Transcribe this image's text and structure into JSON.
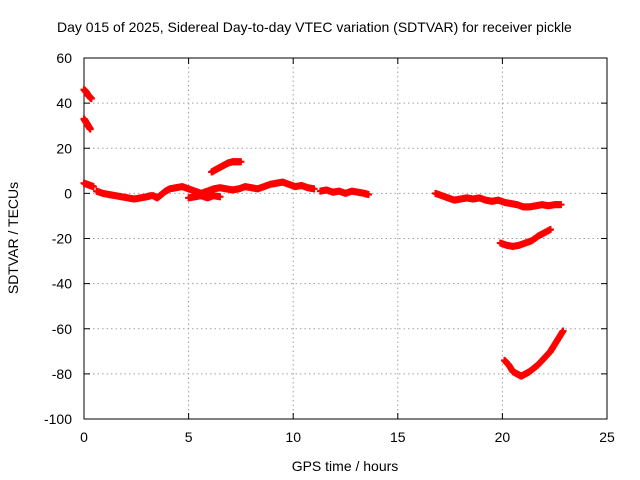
{
  "chart_data": {
    "type": "scatter",
    "title": "Day 015 of 2025, Sidereal Day-to-day VTEC variation (SDTVAR) for receiver pickle",
    "xlabel": "GPS time / hours",
    "ylabel": "SDTVAR / TECUs",
    "xlim": [
      0,
      25
    ],
    "ylim": [
      -100,
      60
    ],
    "xticks": [
      0,
      5,
      10,
      15,
      20,
      25
    ],
    "yticks": [
      -100,
      -80,
      -60,
      -40,
      -20,
      0,
      20,
      40,
      60
    ],
    "grid": true,
    "legend": "none",
    "marker": "plus",
    "color": "#ff0000",
    "segments": [
      {
        "x": [
          0.0,
          0.1,
          0.2,
          0.3,
          0.35
        ],
        "y": [
          46,
          45,
          43.5,
          42.5,
          42
        ]
      },
      {
        "x": [
          0.0,
          0.1,
          0.2,
          0.3
        ],
        "y": [
          33,
          31.5,
          30,
          28.5
        ]
      },
      {
        "x": [
          0.0,
          0.15,
          0.3,
          0.45
        ],
        "y": [
          4.5,
          4,
          3.5,
          3
        ]
      },
      {
        "x": [
          0.6,
          0.9,
          1.2,
          1.5,
          1.8,
          2.1,
          2.4,
          2.7,
          3.0,
          3.2
        ],
        "y": [
          1,
          0,
          -0.5,
          -1,
          -1.5,
          -2,
          -2.5,
          -2,
          -1.5,
          -1
        ]
      },
      {
        "x": [
          3.3,
          3.5,
          3.7,
          3.9,
          4.1,
          4.4,
          4.7,
          5.0,
          5.3,
          5.6,
          5.9,
          6.2,
          6.5,
          6.8,
          7.1,
          7.4,
          7.7,
          8.0,
          8.3,
          8.6,
          8.9,
          9.2,
          9.5,
          9.8,
          10.1,
          10.4,
          10.7,
          11.0
        ],
        "y": [
          -1,
          -2,
          -0.5,
          1,
          2,
          2.5,
          3,
          2,
          1,
          0,
          1,
          2,
          2.5,
          2,
          1.5,
          2,
          3,
          2.5,
          2,
          3,
          4,
          4.5,
          5,
          4,
          3,
          3.5,
          2.5,
          2
        ]
      },
      {
        "x": [
          5.0,
          5.3,
          5.6,
          5.9,
          6.2,
          6.5
        ],
        "y": [
          -2,
          -1.5,
          -1,
          -2,
          -1,
          -1.5
        ]
      },
      {
        "x": [
          6.1,
          6.3,
          6.5,
          6.7,
          6.9,
          7.1,
          7.3,
          7.5
        ],
        "y": [
          9.5,
          10.5,
          11.5,
          12.5,
          13.5,
          14,
          14,
          14
        ]
      },
      {
        "x": [
          11.3,
          11.6,
          11.9,
          12.2,
          12.5,
          12.8,
          13.1,
          13.4,
          13.6
        ],
        "y": [
          1,
          1.5,
          0.5,
          1,
          0,
          1,
          0.5,
          0,
          -0.5
        ]
      },
      {
        "x": [
          16.8,
          17.1,
          17.4,
          17.7,
          18.0,
          18.3,
          18.6,
          18.9,
          19.2,
          19.5,
          19.8,
          20.1,
          20.4,
          20.7,
          21.0,
          21.3,
          21.6,
          21.9,
          22.2,
          22.5,
          22.8
        ],
        "y": [
          0,
          -1,
          -2,
          -3,
          -2.5,
          -2,
          -2.5,
          -2,
          -3,
          -3.5,
          -3,
          -4,
          -4.5,
          -5,
          -6,
          -6,
          -5.5,
          -5,
          -5.5,
          -5,
          -5
        ]
      },
      {
        "x": [
          19.9,
          20.2,
          20.5,
          20.8,
          21.1,
          21.4,
          21.7,
          22.0,
          22.3
        ],
        "y": [
          -22,
          -23,
          -23.5,
          -23,
          -22,
          -21,
          -19,
          -17.5,
          -16
        ]
      },
      {
        "x": [
          20.1,
          20.3,
          20.5,
          20.7,
          20.9,
          21.1,
          21.3,
          21.5,
          21.7,
          21.9,
          22.1,
          22.3,
          22.5,
          22.7,
          22.9
        ],
        "y": [
          -74,
          -76,
          -79,
          -80,
          -81,
          -80,
          -79,
          -77.5,
          -76,
          -74,
          -72,
          -70,
          -67,
          -64,
          -61
        ]
      }
    ]
  }
}
